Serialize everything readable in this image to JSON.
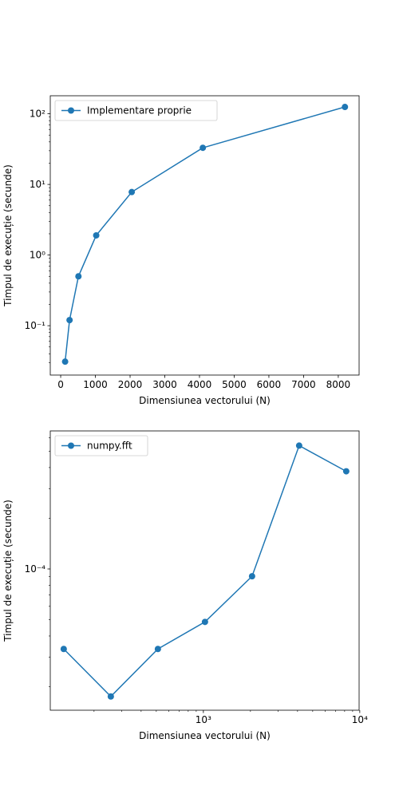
{
  "chart_data": [
    {
      "type": "line",
      "xlabel": "Dimensiunea vectorului (N)",
      "ylabel": "Timpul de execuție (secunde)",
      "xscale": "linear",
      "yscale": "log",
      "xlim": [
        -300,
        8600
      ],
      "ylim": [
        0.02,
        180
      ],
      "xticks": [
        0,
        1000,
        2000,
        3000,
        4000,
        5000,
        6000,
        7000,
        8000
      ],
      "xtick_labels": [
        "0",
        "1000",
        "2000",
        "3000",
        "4000",
        "5000",
        "6000",
        "7000",
        "8000"
      ],
      "yticks": [
        0.1,
        1,
        10,
        100
      ],
      "ytick_labels": [
        "10⁻¹",
        "10⁰",
        "10¹",
        "10²"
      ],
      "legend_position": "upper-left",
      "color": "#1f77b4",
      "series": [
        {
          "name": "Implementare proprie",
          "x": [
            128,
            256,
            512,
            1024,
            2048,
            4096,
            8192
          ],
          "y": [
            0.031,
            0.12,
            0.5,
            1.9,
            7.8,
            33,
            125
          ]
        }
      ]
    },
    {
      "type": "line",
      "xlabel": "Dimensiunea vectorului (N)",
      "ylabel": "Timpul de execuție (secunde)",
      "xscale": "log",
      "yscale": "log",
      "xlim": [
        105,
        9900
      ],
      "ylim": [
        1.45e-05,
        0.00066
      ],
      "xticks": [
        1000,
        10000
      ],
      "xtick_labels": [
        "10³",
        "10⁴"
      ],
      "yticks": [
        0.0001
      ],
      "ytick_labels": [
        "10⁻⁴"
      ],
      "legend_position": "upper-left",
      "color": "#1f77b4",
      "series": [
        {
          "name": "numpy.fft",
          "x": [
            128,
            256,
            512,
            1024,
            2048,
            4096,
            8192
          ],
          "y": [
            3.35e-05,
            1.75e-05,
            3.35e-05,
            4.85e-05,
            9.05e-05,
            0.00054,
            0.00038
          ]
        }
      ]
    }
  ]
}
